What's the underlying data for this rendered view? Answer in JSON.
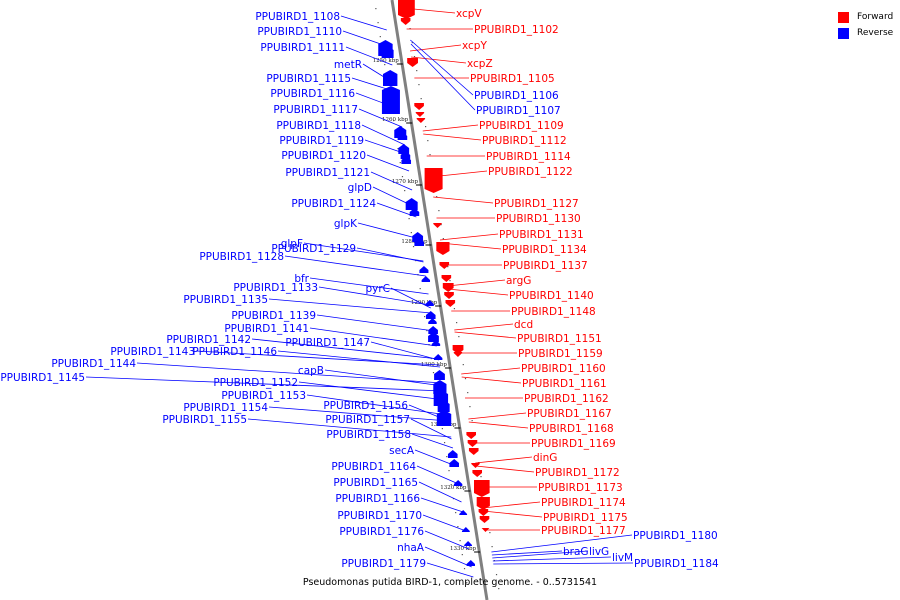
{
  "caption": "Pseudomonas putida BIRD-1, complete genome. - 0..5731541",
  "legend": [
    {
      "label": "Forward",
      "color": "#ff0000"
    },
    {
      "label": "Reverse",
      "color": "#0000ff"
    }
  ],
  "colors": {
    "forward": "#ff0000",
    "reverse": "#0000ff",
    "axis": "#808080"
  },
  "ticks": [
    "1250 kbp",
    "1260 kbp",
    "1270 kbp",
    "1280 kbp",
    "1290 kbp",
    "1300 kbp",
    "1310 kbp",
    "1320 kbp",
    "1330 kbp"
  ],
  "reverse_labels": [
    "PPUBIRD1_1108",
    "PPUBIRD1_1110",
    "PPUBIRD1_1111",
    "metR",
    "PPUBIRD1_1115",
    "PPUBIRD1_1116",
    "PPUBIRD1_1117",
    "PPUBIRD1_1118",
    "PPUBIRD1_1119",
    "PPUBIRD1_1120",
    "PPUBIRD1_1121",
    "glpD",
    "PPUBIRD1_1124",
    "glpK",
    "glpF",
    "PPUBIRD1_1128",
    "PPUBIRD1_1129",
    "bfr",
    "PPUBIRD1_1133",
    "pyrC",
    "PPUBIRD1_1135",
    "PPUBIRD1_1139",
    "PPUBIRD1_1141",
    "PPUBIRD1_1142",
    "PPUBIRD1_1143",
    "PPUBIRD1_1146",
    "PPUBIRD1_1147",
    "PPUBIRD1_1144",
    "PPUBIRD1_1145",
    "capB",
    "PPUBIRD1_1152",
    "PPUBIRD1_1153",
    "PPUBIRD1_1154",
    "PPUBIRD1_1156",
    "PPUBIRD1_1155",
    "PPUBIRD1_1157",
    "PPUBIRD1_1158",
    "secA",
    "PPUBIRD1_1164",
    "PPUBIRD1_1165",
    "PPUBIRD1_1166",
    "PPUBIRD1_1170",
    "PPUBIRD1_1176",
    "nhaA",
    "PPUBIRD1_1179"
  ],
  "forward_labels": [
    "xcpV",
    "PPUBIRD1_1102",
    "xcpY",
    "xcpZ",
    "PPUBIRD1_1105",
    "PPUBIRD1_1109",
    "PPUBIRD1_1112",
    "PPUBIRD1_1114",
    "PPUBIRD1_1122",
    "PPUBIRD1_1127",
    "PPUBIRD1_1130",
    "PPUBIRD1_1131",
    "PPUBIRD1_1134",
    "PPUBIRD1_1137",
    "argG",
    "PPUBIRD1_1140",
    "PPUBIRD1_1148",
    "dcd",
    "PPUBIRD1_1151",
    "PPUBIRD1_1159",
    "PPUBIRD1_1160",
    "PPUBIRD1_1161",
    "PPUBIRD1_1162",
    "PPUBIRD1_1167",
    "PPUBIRD1_1168",
    "PPUBIRD1_1169",
    "dinG",
    "PPUBIRD1_1172",
    "PPUBIRD1_1173",
    "PPUBIRD1_1174",
    "PPUBIRD1_1175",
    "PPUBIRD1_1177"
  ],
  "reverse_right_labels": [
    "PPUBIRD1_1106",
    "PPUBIRD1_1107",
    "PPUBIRD1_1180",
    "braG",
    "livG",
    "livM",
    "PPUBIRD1_1184"
  ]
}
